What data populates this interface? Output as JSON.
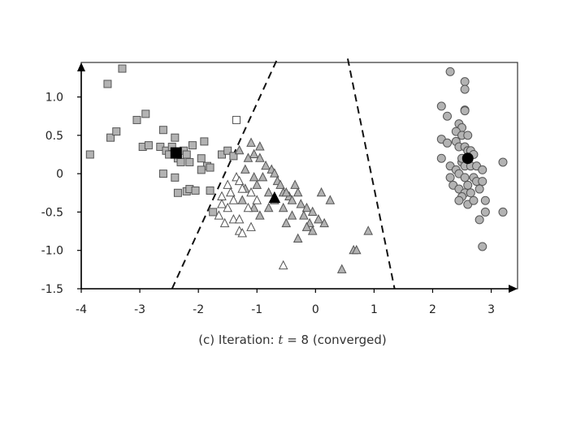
{
  "caption": {
    "prefix": "(c) Iteration:",
    "variable": "t",
    "rest": "= 8 (converged)"
  },
  "chart_data": {
    "type": "scatter",
    "xlim": [
      -4,
      3.45
    ],
    "ylim": [
      -1.5,
      1.45
    ],
    "x_ticks": [
      -4,
      -3,
      -2,
      -1,
      0,
      1,
      2,
      3
    ],
    "y_ticks": [
      1.0,
      0.5,
      0,
      -0.5,
      -1.0,
      -1.5
    ],
    "x_tick_labels": [
      "-4",
      "-3",
      "-2",
      "-1",
      "0",
      "1",
      "2",
      "3"
    ],
    "y_tick_labels": [
      "1.0",
      "0.5",
      "0",
      "-0.5",
      "-1.0",
      "-1.5"
    ],
    "grid": false,
    "boundaries": [
      {
        "style": "dashed",
        "points": [
          [
            -2.45,
            -1.5
          ],
          [
            -0.65,
            1.5
          ]
        ]
      },
      {
        "style": "dashed",
        "points": [
          [
            0.55,
            1.5
          ],
          [
            1.35,
            -1.5
          ]
        ]
      }
    ],
    "series": [
      {
        "marker": "square",
        "fill": "#b3b3b3",
        "points": [
          [
            -3.85,
            0.25
          ],
          [
            -3.55,
            1.17
          ],
          [
            -3.5,
            0.47
          ],
          [
            -3.4,
            0.55
          ],
          [
            -3.3,
            1.37
          ],
          [
            -3.05,
            0.7
          ],
          [
            -2.95,
            0.35
          ],
          [
            -2.9,
            0.78
          ],
          [
            -2.85,
            0.37
          ],
          [
            -2.65,
            0.35
          ],
          [
            -2.6,
            0.57
          ],
          [
            -2.55,
            0.3
          ],
          [
            -2.5,
            0.25
          ],
          [
            -2.45,
            0.35
          ],
          [
            -2.4,
            0.47
          ],
          [
            -2.35,
            0.2
          ],
          [
            -2.3,
            0.15
          ],
          [
            -2.25,
            0.3
          ],
          [
            -2.2,
            0.25
          ],
          [
            -2.15,
            0.15
          ],
          [
            -2.1,
            0.37
          ],
          [
            -1.95,
            0.2
          ],
          [
            -1.9,
            0.42
          ],
          [
            -1.85,
            0.1
          ],
          [
            -1.6,
            0.25
          ],
          [
            -1.5,
            0.3
          ],
          [
            -1.4,
            0.23
          ],
          [
            -2.6,
            0
          ],
          [
            -2.4,
            -0.05
          ],
          [
            -2.35,
            -0.25
          ],
          [
            -2.2,
            -0.23
          ],
          [
            -2.15,
            -0.2
          ],
          [
            -2.05,
            -0.22
          ],
          [
            -1.95,
            0.05
          ],
          [
            -1.8,
            -0.22
          ],
          [
            -1.8,
            0.08
          ],
          [
            -1.75,
            -0.5
          ]
        ]
      },
      {
        "marker": "square",
        "fill": "#ffffff",
        "points": [
          [
            -1.35,
            0.7
          ]
        ]
      },
      {
        "marker": "triangle",
        "fill": "#b3b3b3",
        "points": [
          [
            -1.3,
            0.3
          ],
          [
            -1.1,
            0.4
          ],
          [
            -1.05,
            0.25
          ],
          [
            -0.95,
            0.35
          ],
          [
            -0.95,
            0.2
          ],
          [
            -0.85,
            0.1
          ],
          [
            -0.75,
            0.05
          ],
          [
            -0.7,
            0
          ],
          [
            -0.65,
            -0.1
          ],
          [
            -0.6,
            -0.15
          ],
          [
            -0.55,
            -0.25
          ],
          [
            -0.45,
            -0.3
          ],
          [
            -0.4,
            -0.35
          ],
          [
            -0.3,
            -0.25
          ],
          [
            -0.25,
            -0.4
          ],
          [
            -0.15,
            -0.45
          ],
          [
            -0.05,
            -0.5
          ],
          [
            -0.2,
            -0.55
          ],
          [
            -0.1,
            -0.65
          ],
          [
            0.05,
            -0.6
          ],
          [
            0.15,
            -0.65
          ],
          [
            -0.05,
            -0.75
          ],
          [
            -0.4,
            -0.55
          ],
          [
            -0.5,
            -0.65
          ],
          [
            -0.7,
            -0.35
          ],
          [
            -0.8,
            -0.25
          ],
          [
            -0.9,
            -0.05
          ],
          [
            -1.0,
            -0.15
          ],
          [
            -1.05,
            -0.05
          ],
          [
            -1.2,
            -0.2
          ],
          [
            -1.25,
            -0.35
          ],
          [
            -0.95,
            -0.55
          ],
          [
            -0.8,
            -0.45
          ],
          [
            -1.05,
            -0.45
          ],
          [
            0.1,
            -0.25
          ],
          [
            0.25,
            -0.35
          ],
          [
            0.65,
            -1.0
          ],
          [
            0.7,
            -1.0
          ],
          [
            0.9,
            -0.75
          ],
          [
            0.45,
            -1.25
          ],
          [
            -0.5,
            -0.25
          ],
          [
            -0.35,
            -0.15
          ],
          [
            -0.55,
            -0.45
          ],
          [
            -0.15,
            -0.7
          ],
          [
            -0.3,
            -0.85
          ],
          [
            -1.2,
            0.05
          ],
          [
            -1.15,
            0.2
          ]
        ]
      },
      {
        "marker": "triangle",
        "fill": "#ffffff",
        "points": [
          [
            -1.6,
            -0.3
          ],
          [
            -1.5,
            -0.15
          ],
          [
            -1.45,
            -0.25
          ],
          [
            -1.4,
            -0.35
          ],
          [
            -1.35,
            -0.05
          ],
          [
            -1.3,
            -0.1
          ],
          [
            -1.25,
            -0.2
          ],
          [
            -1.5,
            -0.45
          ],
          [
            -1.6,
            -0.4
          ],
          [
            -1.65,
            -0.55
          ],
          [
            -1.4,
            -0.6
          ],
          [
            -1.3,
            -0.6
          ],
          [
            -1.3,
            -0.75
          ],
          [
            -1.25,
            -0.78
          ],
          [
            -1.1,
            -0.7
          ],
          [
            -1.55,
            -0.65
          ],
          [
            -0.55,
            -1.2
          ],
          [
            -1.1,
            -0.25
          ],
          [
            -1.15,
            -0.45
          ],
          [
            -1.0,
            -0.35
          ]
        ]
      },
      {
        "marker": "circle",
        "fill": "#b3b3b3",
        "points": [
          [
            2.3,
            1.33
          ],
          [
            2.55,
            1.2
          ],
          [
            2.55,
            1.1
          ],
          [
            2.55,
            0.83
          ],
          [
            2.15,
            0.88
          ],
          [
            2.25,
            0.75
          ],
          [
            2.45,
            0.65
          ],
          [
            2.5,
            0.6
          ],
          [
            2.55,
            0.82
          ],
          [
            2.4,
            0.55
          ],
          [
            2.5,
            0.5
          ],
          [
            2.4,
            0.42
          ],
          [
            2.15,
            0.45
          ],
          [
            2.25,
            0.4
          ],
          [
            2.45,
            0.35
          ],
          [
            2.55,
            0.35
          ],
          [
            2.6,
            0.3
          ],
          [
            2.65,
            0.3
          ],
          [
            2.7,
            0.25
          ],
          [
            2.6,
            0.2
          ],
          [
            2.5,
            0.15
          ],
          [
            2.55,
            0.1
          ],
          [
            2.3,
            0.1
          ],
          [
            2.4,
            0.05
          ],
          [
            2.65,
            0.1
          ],
          [
            2.75,
            0.1
          ],
          [
            2.85,
            0.05
          ],
          [
            2.3,
            -0.05
          ],
          [
            2.45,
            0
          ],
          [
            2.55,
            -0.05
          ],
          [
            2.7,
            -0.05
          ],
          [
            2.75,
            -0.1
          ],
          [
            2.85,
            -0.1
          ],
          [
            2.35,
            -0.15
          ],
          [
            2.45,
            -0.2
          ],
          [
            2.6,
            -0.15
          ],
          [
            2.55,
            -0.25
          ],
          [
            2.65,
            -0.25
          ],
          [
            2.8,
            -0.2
          ],
          [
            2.5,
            -0.3
          ],
          [
            2.6,
            -0.4
          ],
          [
            2.45,
            -0.35
          ],
          [
            2.7,
            -0.35
          ],
          [
            2.9,
            -0.35
          ],
          [
            2.9,
            -0.5
          ],
          [
            2.8,
            -0.6
          ],
          [
            2.85,
            -0.95
          ],
          [
            3.2,
            0.15
          ],
          [
            3.2,
            -0.5
          ],
          [
            2.5,
            0.2
          ],
          [
            2.15,
            0.2
          ],
          [
            2.6,
            0.5
          ]
        ]
      }
    ],
    "centroids": [
      {
        "marker": "square",
        "x": -2.38,
        "y": 0.27
      },
      {
        "marker": "triangle",
        "x": -0.7,
        "y": -0.32
      },
      {
        "marker": "circle",
        "x": 2.6,
        "y": 0.2
      }
    ]
  }
}
